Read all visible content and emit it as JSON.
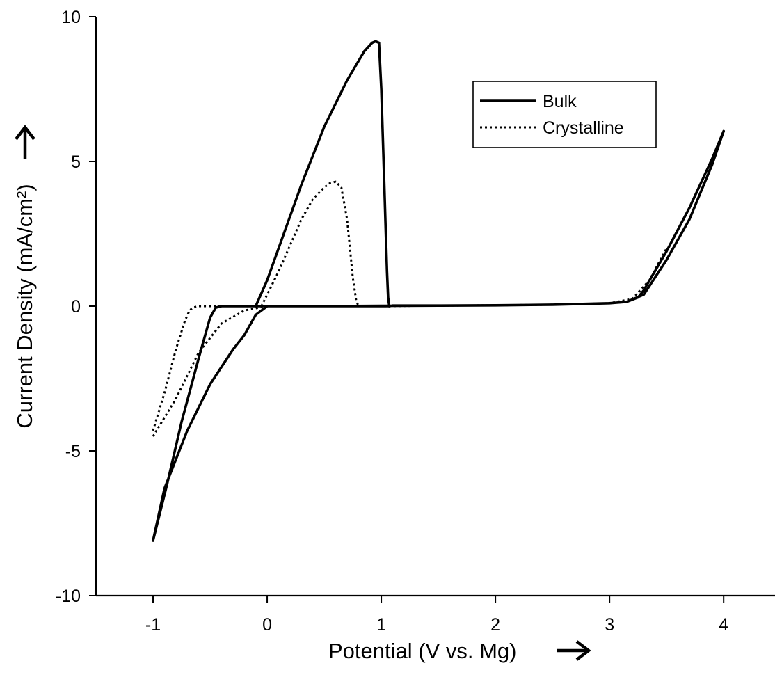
{
  "chart_data": {
    "type": "line",
    "title": "",
    "xlabel": "Potential (V vs. Mg)",
    "ylabel": "Current Density (mA/cm²)",
    "xlim": [
      -1.5,
      4.45
    ],
    "ylim": [
      -10,
      10
    ],
    "xticks": [
      "-1",
      "0",
      "1",
      "2",
      "3",
      "4"
    ],
    "yticks": [
      "-10",
      "-5",
      "0",
      "5",
      "10"
    ],
    "grid": false,
    "legend_position": "top-right",
    "series": [
      {
        "name": "Bulk",
        "line_style": "solid",
        "x": [
          -1.0,
          -0.88,
          -0.75,
          -0.6,
          -0.5,
          -0.45,
          -0.4,
          -0.2,
          0.0,
          0.2,
          0.5,
          0.8,
          0.95,
          1.0,
          1.02,
          1.05,
          1.07,
          1.1,
          1.5,
          2.0,
          2.5,
          3.0,
          3.15,
          3.3,
          3.5,
          3.7,
          3.9,
          4.0,
          3.9,
          3.7,
          3.5,
          3.3,
          3.25,
          3.15,
          3.0,
          2.5,
          2.0,
          1.5,
          1.0,
          0.5,
          0.1,
          0.0,
          -0.1,
          -0.2,
          -0.3,
          -0.5,
          -0.7,
          -0.9,
          -1.0
        ],
        "y": [
          -8.1,
          -6.2,
          -4.0,
          -1.8,
          -0.4,
          -0.05,
          0.0,
          0.0,
          0.0,
          0.0,
          0.0,
          0.0,
          0.0,
          0.0,
          0.0,
          0.0,
          0.0,
          0.02,
          0.02,
          0.03,
          0.05,
          0.1,
          0.15,
          0.4,
          1.6,
          3.0,
          4.9,
          6.05,
          5.1,
          3.4,
          1.9,
          0.55,
          0.3,
          0.15,
          0.1,
          0.05,
          0.03,
          0.02,
          0.01,
          0.0,
          0.0,
          0.0,
          -0.3,
          -1.0,
          -1.5,
          -2.7,
          -4.3,
          -6.3,
          -8.1
        ]
      },
      {
        "name": "Bulk",
        "line_style": "solid",
        "x": [
          -0.1,
          0.0,
          0.1,
          0.3,
          0.5,
          0.7,
          0.85,
          0.92,
          0.95,
          0.98,
          1.0,
          1.02,
          1.04,
          1.05,
          1.06,
          1.07
        ],
        "y": [
          0.0,
          0.9,
          2.0,
          4.2,
          6.2,
          7.8,
          8.8,
          9.1,
          9.15,
          9.1,
          7.5,
          5.0,
          2.5,
          1.2,
          0.3,
          0.0
        ]
      },
      {
        "name": "Crystalline",
        "line_style": "dotted",
        "x": [
          -1.0,
          -0.9,
          -0.8,
          -0.72,
          -0.68,
          -0.65,
          -0.6,
          -0.4,
          -0.2,
          0.0,
          0.2,
          0.4,
          0.6,
          0.75,
          0.8,
          1.0,
          1.5,
          2.0,
          2.5,
          3.0,
          3.2,
          3.35,
          3.5
        ],
        "y": [
          -4.3,
          -3.0,
          -1.5,
          -0.5,
          -0.15,
          -0.05,
          0.0,
          0.0,
          0.0,
          0.0,
          0.0,
          0.0,
          0.0,
          0.0,
          0.0,
          0.0,
          0.02,
          0.03,
          0.05,
          0.1,
          0.25,
          0.9,
          2.0
        ]
      },
      {
        "name": "Crystalline",
        "line_style": "dotted",
        "x": [
          -1.0,
          -0.8,
          -0.6,
          -0.4,
          -0.2,
          0.0,
          0.1
        ],
        "y": [
          -4.5,
          -3.2,
          -1.6,
          -0.6,
          -0.15,
          0.0,
          0.0
        ]
      },
      {
        "name": "Crystalline",
        "line_style": "dotted",
        "x": [
          -0.05,
          0.0,
          0.1,
          0.2,
          0.3,
          0.4,
          0.5,
          0.55,
          0.6,
          0.65,
          0.7,
          0.72,
          0.75,
          0.78,
          0.8
        ],
        "y": [
          0.0,
          0.4,
          1.2,
          2.1,
          3.0,
          3.7,
          4.1,
          4.25,
          4.3,
          4.1,
          3.0,
          2.2,
          1.0,
          0.2,
          0.0
        ]
      }
    ],
    "legend": [
      {
        "label": "Bulk",
        "line_style": "solid"
      },
      {
        "label": "Crystalline",
        "line_style": "dotted"
      }
    ]
  }
}
